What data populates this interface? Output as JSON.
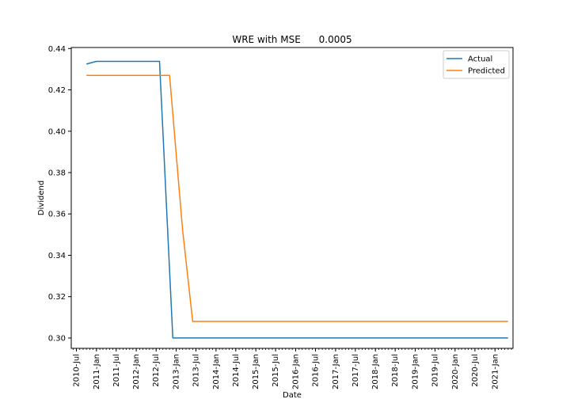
{
  "chart_data": {
    "type": "line",
    "title": "WRE with MSE      0.0005",
    "xlabel": "Date",
    "ylabel": "Dividend",
    "xlim": [
      "2010-05-15",
      "2021-06-15"
    ],
    "ylim": [
      0.295,
      0.4405
    ],
    "y_ticks": [
      0.3,
      0.32,
      0.34,
      0.36,
      0.38,
      0.4,
      0.42,
      0.44
    ],
    "x_ticks": [
      {
        "date": "2010-07-01",
        "label": "2010-Jul"
      },
      {
        "date": "2011-01-01",
        "label": "2011-Jan"
      },
      {
        "date": "2011-07-01",
        "label": "2011-Jul"
      },
      {
        "date": "2012-01-01",
        "label": "2012-Jan"
      },
      {
        "date": "2012-07-01",
        "label": "2012-Jul"
      },
      {
        "date": "2013-01-01",
        "label": "2013-Jan"
      },
      {
        "date": "2013-07-01",
        "label": "2013-Jul"
      },
      {
        "date": "2014-01-01",
        "label": "2014-Jan"
      },
      {
        "date": "2014-07-01",
        "label": "2014-Jul"
      },
      {
        "date": "2015-01-01",
        "label": "2015-Jan"
      },
      {
        "date": "2015-07-01",
        "label": "2015-Jul"
      },
      {
        "date": "2016-01-01",
        "label": "2016-Jan"
      },
      {
        "date": "2016-07-01",
        "label": "2016-Jul"
      },
      {
        "date": "2017-01-01",
        "label": "2017-Jan"
      },
      {
        "date": "2017-07-01",
        "label": "2017-Jul"
      },
      {
        "date": "2018-01-01",
        "label": "2018-Jan"
      },
      {
        "date": "2018-07-01",
        "label": "2018-Jul"
      },
      {
        "date": "2019-01-01",
        "label": "2019-Jan"
      },
      {
        "date": "2019-07-01",
        "label": "2019-Jul"
      },
      {
        "date": "2020-01-01",
        "label": "2020-Jan"
      },
      {
        "date": "2020-07-01",
        "label": "2020-Jul"
      },
      {
        "date": "2021-01-01",
        "label": "2021-Jan"
      }
    ],
    "grid": false,
    "legend_position": "top-right",
    "series": [
      {
        "name": "Actual",
        "color": "#1f77b4",
        "points": [
          {
            "x": "2010-10-01",
            "y": 0.4325
          },
          {
            "x": "2011-01-01",
            "y": 0.4338
          },
          {
            "x": "2012-08-01",
            "y": 0.4338
          },
          {
            "x": "2012-12-01",
            "y": 0.3
          },
          {
            "x": "2021-05-01",
            "y": 0.3
          }
        ]
      },
      {
        "name": "Predicted",
        "color": "#ff7f0e",
        "points": [
          {
            "x": "2010-10-01",
            "y": 0.427
          },
          {
            "x": "2012-11-01",
            "y": 0.427
          },
          {
            "x": "2013-03-01",
            "y": 0.352
          },
          {
            "x": "2013-06-01",
            "y": 0.308
          },
          {
            "x": "2021-05-01",
            "y": 0.308
          }
        ]
      }
    ]
  }
}
